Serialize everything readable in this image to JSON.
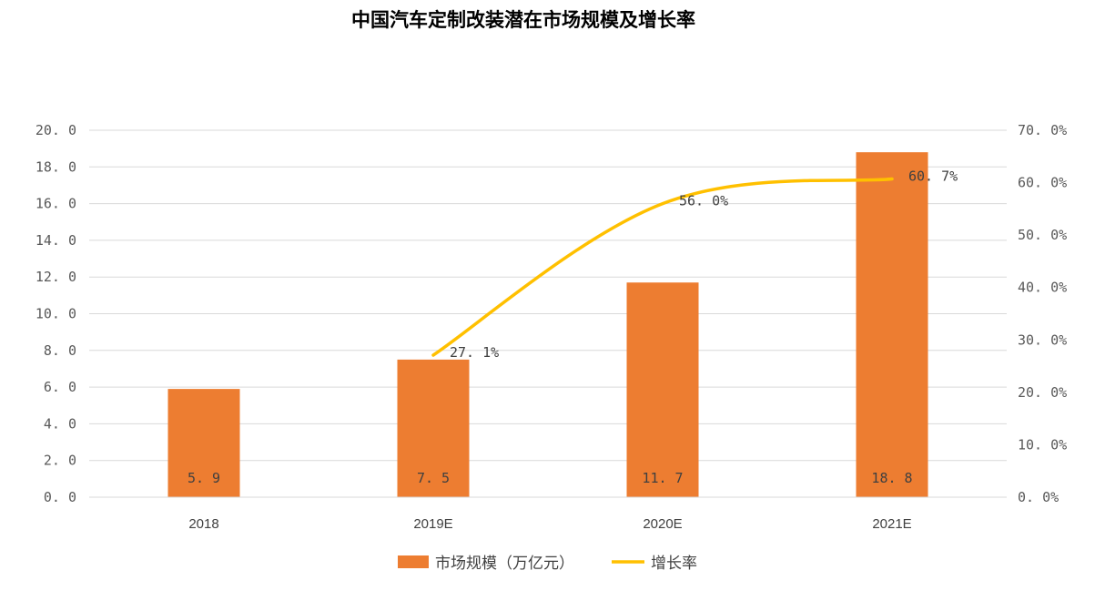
{
  "chart_data": {
    "type": "bar",
    "title": "中国汽车定制改装潜在市场规模及增长率",
    "categories": [
      "2018",
      "2019E",
      "2020E",
      "2021E"
    ],
    "series": [
      {
        "name": "市场规模（万亿元）",
        "type": "bar",
        "axis": "left",
        "values": [
          5.9,
          7.5,
          11.7,
          18.8
        ],
        "labels": [
          "5.9",
          "7.5",
          "11.7",
          "18.8"
        ],
        "color": "#ED7D31"
      },
      {
        "name": "增长率",
        "type": "line",
        "axis": "right",
        "values": [
          null,
          27.1,
          56.0,
          60.7
        ],
        "labels": [
          "",
          "27.1%",
          "56.0%",
          "60.7%"
        ],
        "color": "#FFC000"
      }
    ],
    "y_left": {
      "range": [
        0,
        20
      ],
      "ticks": [
        "0.0",
        "2.0",
        "4.0",
        "6.0",
        "8.0",
        "10.0",
        "12.0",
        "14.0",
        "16.0",
        "18.0",
        "20.0"
      ]
    },
    "y_right": {
      "range": [
        0,
        70
      ],
      "ticks": [
        "0.0%",
        "10.0%",
        "20.0%",
        "30.0%",
        "40.0%",
        "50.0%",
        "60.0%",
        "70.0%"
      ]
    },
    "grid": true,
    "legend_position": "bottom"
  }
}
